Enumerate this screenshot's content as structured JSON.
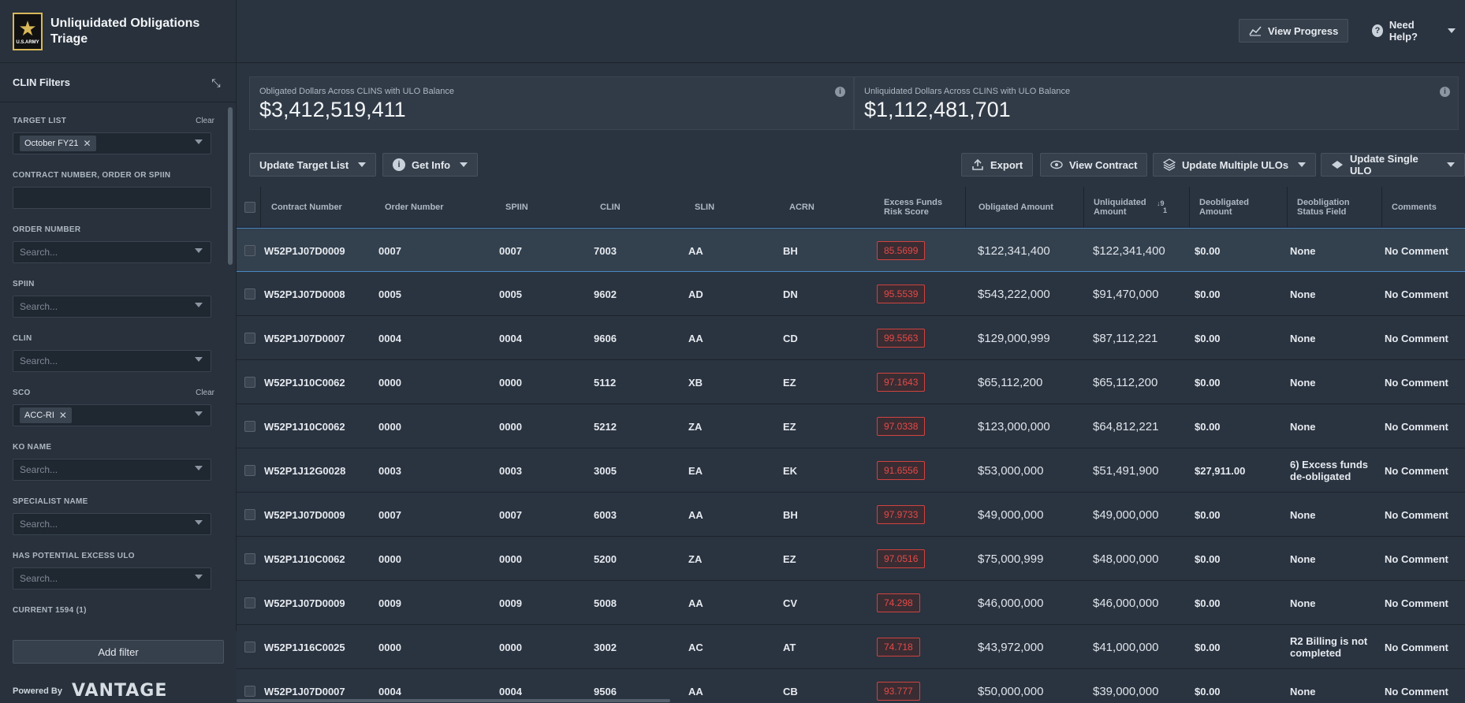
{
  "app": {
    "title": "Unliquidated Obligations Triage",
    "logo_text": "U.S.ARMY",
    "logo_icon": "star-icon"
  },
  "header": {
    "view_progress": "View Progress",
    "need_help": "Need Help?"
  },
  "sidebar": {
    "title": "CLIN Filters",
    "filters": [
      {
        "label": "TARGET LIST",
        "clear": "Clear",
        "tag": "October FY21",
        "placeholder": ""
      },
      {
        "label": "CONTRACT NUMBER, ORDER OR SPIIN",
        "clear": "",
        "tag": "",
        "placeholder": ""
      },
      {
        "label": "ORDER NUMBER",
        "clear": "",
        "tag": "",
        "placeholder": "Search..."
      },
      {
        "label": "SPIIN",
        "clear": "",
        "tag": "",
        "placeholder": "Search..."
      },
      {
        "label": "CLIN",
        "clear": "",
        "tag": "",
        "placeholder": "Search..."
      },
      {
        "label": "SCO",
        "clear": "Clear",
        "tag": "ACC-RI",
        "placeholder": ""
      },
      {
        "label": "KO NAME",
        "clear": "",
        "tag": "",
        "placeholder": "Search..."
      },
      {
        "label": "SPECIALIST NAME",
        "clear": "",
        "tag": "",
        "placeholder": "Search..."
      },
      {
        "label": "HAS POTENTIAL EXCESS ULO",
        "clear": "",
        "tag": "",
        "placeholder": "Search..."
      },
      {
        "label": "CURRENT 1594 (1)",
        "clear": "",
        "tag": "",
        "placeholder": ""
      }
    ],
    "add_filter": "Add filter",
    "powered_by": "Powered By",
    "vantage": "VANTAGE"
  },
  "stats": {
    "obligated_label": "Obligated Dollars Across CLINS with ULO Balance",
    "obligated_value": "$3,412,519,411",
    "unliquidated_label": "Unliquidated Dollars Across CLINS with ULO Balance",
    "unliquidated_value": "$1,112,481,701"
  },
  "toolbar": {
    "update_target_list": "Update Target List",
    "get_info": "Get Info",
    "export": "Export",
    "view_contract": "View Contract",
    "update_multiple": "Update Multiple ULOs",
    "update_single": "Update Single ULO"
  },
  "table": {
    "headers": {
      "contract": "Contract Number",
      "order": "Order Number",
      "spiin": "SPIIN",
      "clin": "CLIN",
      "slin": "SLIN",
      "acrn": "ACRN",
      "risk": "Excess Funds Risk Score",
      "obligated": "Obligated Amount",
      "unliquidated": "Unliquidated Amount",
      "deobligated": "Deobligated Amount",
      "deob_status": "Deobligation Status Field",
      "comments": "Comments",
      "sort_top": "9",
      "sort_bottom": "1"
    },
    "rows": [
      {
        "contract": "W52P1J07D0009",
        "order": "0007",
        "spiin": "0007",
        "clin": "7003",
        "slin": "AA",
        "acrn": "BH",
        "risk": "85.5699",
        "obligated": "$122,341,400",
        "unliquidated": "$122,341,400",
        "deobligated": "$0.00",
        "status": "None",
        "comment": "No Comment"
      },
      {
        "contract": "W52P1J07D0008",
        "order": "0005",
        "spiin": "0005",
        "clin": "9602",
        "slin": "AD",
        "acrn": "DN",
        "risk": "95.5539",
        "obligated": "$543,222,000",
        "unliquidated": "$91,470,000",
        "deobligated": "$0.00",
        "status": "None",
        "comment": "No Comment"
      },
      {
        "contract": "W52P1J07D0007",
        "order": "0004",
        "spiin": "0004",
        "clin": "9606",
        "slin": "AA",
        "acrn": "CD",
        "risk": "99.5563",
        "obligated": "$129,000,999",
        "unliquidated": "$87,112,221",
        "deobligated": "$0.00",
        "status": "None",
        "comment": "No Comment"
      },
      {
        "contract": "W52P1J10C0062",
        "order": "0000",
        "spiin": "0000",
        "clin": "5112",
        "slin": "XB",
        "acrn": "EZ",
        "risk": "97.1643",
        "obligated": "$65,112,200",
        "unliquidated": "$65,112,200",
        "deobligated": "$0.00",
        "status": "None",
        "comment": "No Comment"
      },
      {
        "contract": "W52P1J10C0062",
        "order": "0000",
        "spiin": "0000",
        "clin": "5212",
        "slin": "ZA",
        "acrn": "EZ",
        "risk": "97.0338",
        "obligated": "$123,000,000",
        "unliquidated": "$64,812,221",
        "deobligated": "$0.00",
        "status": "None",
        "comment": "No Comment"
      },
      {
        "contract": "W52P1J12G0028",
        "order": "0003",
        "spiin": "0003",
        "clin": "3005",
        "slin": "EA",
        "acrn": "EK",
        "risk": "91.6556",
        "obligated": "$53,000,000",
        "unliquidated": "$51,491,900",
        "deobligated": "$27,911.00",
        "status": "6) Excess funds de-obligated",
        "comment": "No Comment"
      },
      {
        "contract": "W52P1J07D0009",
        "order": "0007",
        "spiin": "0007",
        "clin": "6003",
        "slin": "AA",
        "acrn": "BH",
        "risk": "97.9733",
        "obligated": "$49,000,000",
        "unliquidated": "$49,000,000",
        "deobligated": "$0.00",
        "status": "None",
        "comment": "No Comment"
      },
      {
        "contract": "W52P1J10C0062",
        "order": "0000",
        "spiin": "0000",
        "clin": "5200",
        "slin": "ZA",
        "acrn": "EZ",
        "risk": "97.0516",
        "obligated": "$75,000,999",
        "unliquidated": "$48,000,000",
        "deobligated": "$0.00",
        "status": "None",
        "comment": "No Comment"
      },
      {
        "contract": "W52P1J07D0009",
        "order": "0009",
        "spiin": "0009",
        "clin": "5008",
        "slin": "AA",
        "acrn": "CV",
        "risk": "74.298",
        "obligated": "$46,000,000",
        "unliquidated": "$46,000,000",
        "deobligated": "$0.00",
        "status": "None",
        "comment": "No Comment"
      },
      {
        "contract": "W52P1J16C0025",
        "order": "0000",
        "spiin": "0000",
        "clin": "3002",
        "slin": "AC",
        "acrn": "AT",
        "risk": "74.718",
        "obligated": "$43,972,000",
        "unliquidated": "$41,000,000",
        "deobligated": "$0.00",
        "status": "R2 Billing is not completed",
        "comment": "No Comment"
      },
      {
        "contract": "W52P1J07D0007",
        "order": "0004",
        "spiin": "0004",
        "clin": "9506",
        "slin": "AA",
        "acrn": "CB",
        "risk": "93.777",
        "obligated": "$50,000,000",
        "unliquidated": "$39,000,000",
        "deobligated": "$0.00",
        "status": "None",
        "comment": "No Comment"
      }
    ]
  }
}
